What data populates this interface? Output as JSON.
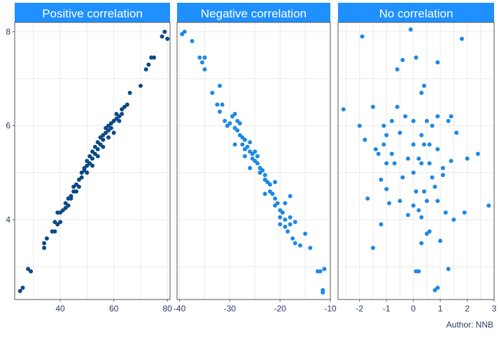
{
  "caption": "Author: NNB",
  "colors": {
    "header": "#1e90ff",
    "header_text": "#ffffff",
    "grid": "#e9e9e9",
    "border": "#555555",
    "tick_text": "#2b3a67",
    "dark_point": "#0c4a86",
    "light_point": "#1e88e5"
  },
  "y_ticks": [
    "4",
    "6",
    "8"
  ],
  "chart_data": [
    {
      "type": "scatter",
      "title": "Positive correlation",
      "xlim": [
        23,
        81
      ],
      "ylim": [
        2.3,
        8.2
      ],
      "x_ticks": [
        40,
        60,
        80
      ],
      "y_ticks": [
        4,
        6,
        8
      ],
      "grid": true,
      "color": "#0c4a86",
      "points": [
        [
          25,
          2.48
        ],
        [
          26,
          2.55
        ],
        [
          28,
          2.95
        ],
        [
          29,
          2.9
        ],
        [
          34,
          3.4
        ],
        [
          34,
          3.5
        ],
        [
          35,
          3.6
        ],
        [
          37,
          3.75
        ],
        [
          38,
          3.75
        ],
        [
          38,
          3.95
        ],
        [
          39,
          4.15
        ],
        [
          39,
          3.9
        ],
        [
          40,
          3.95
        ],
        [
          40,
          4.15
        ],
        [
          41,
          4.2
        ],
        [
          42,
          4.25
        ],
        [
          42,
          4.35
        ],
        [
          43,
          4.45
        ],
        [
          43,
          4.3
        ],
        [
          44,
          4.5
        ],
        [
          45,
          4.6
        ],
        [
          45,
          4.7
        ],
        [
          46,
          4.75
        ],
        [
          47,
          4.7
        ],
        [
          47,
          4.85
        ],
        [
          48,
          4.9
        ],
        [
          48,
          5.0
        ],
        [
          49,
          5.05
        ],
        [
          49,
          5.1
        ],
        [
          50,
          5.15
        ],
        [
          50,
          5.25
        ],
        [
          51,
          5.2
        ],
        [
          51,
          5.35
        ],
        [
          52,
          5.3
        ],
        [
          52,
          5.45
        ],
        [
          53,
          5.4
        ],
        [
          53,
          5.55
        ],
        [
          54,
          5.5
        ],
        [
          54,
          5.65
        ],
        [
          55,
          5.6
        ],
        [
          55,
          5.75
        ],
        [
          56,
          5.8
        ],
        [
          56,
          5.7
        ],
        [
          57,
          5.85
        ],
        [
          57,
          5.95
        ],
        [
          58,
          5.9
        ],
        [
          58,
          6.0
        ],
        [
          59,
          6.05
        ],
        [
          59,
          5.95
        ],
        [
          60,
          6.1
        ],
        [
          60,
          5.85
        ],
        [
          61,
          6.15
        ],
        [
          61,
          6.25
        ],
        [
          62,
          6.2
        ],
        [
          62,
          6.1
        ],
        [
          63,
          6.35
        ],
        [
          63,
          6.25
        ],
        [
          64,
          6.4
        ],
        [
          65,
          6.45
        ],
        [
          66,
          6.7
        ],
        [
          70,
          6.85
        ],
        [
          72,
          7.2
        ],
        [
          73,
          7.3
        ],
        [
          74,
          7.45
        ],
        [
          75,
          7.45
        ],
        [
          78,
          7.9
        ],
        [
          79,
          8.0
        ],
        [
          80,
          7.85
        ],
        [
          56,
          5.55
        ],
        [
          54,
          5.35
        ],
        [
          50,
          5.0
        ],
        [
          46,
          4.6
        ],
        [
          44,
          4.45
        ],
        [
          52,
          5.15
        ],
        [
          58,
          5.75
        ]
      ]
    },
    {
      "type": "scatter",
      "title": "Negative correlation",
      "xlim": [
        -40.5,
        -10
      ],
      "ylim": [
        2.3,
        8.2
      ],
      "x_ticks": [
        -40,
        -30,
        -20,
        -10
      ],
      "y_ticks": [
        4,
        6,
        8
      ],
      "grid": true,
      "color": "#1e88e5",
      "points": [
        [
          -39.5,
          7.95
        ],
        [
          -39,
          8.0
        ],
        [
          -37.5,
          7.8
        ],
        [
          -36,
          7.45
        ],
        [
          -35.5,
          7.35
        ],
        [
          -35,
          7.45
        ],
        [
          -35,
          7.2
        ],
        [
          -33.5,
          6.7
        ],
        [
          -32.5,
          6.45
        ],
        [
          -32,
          6.85
        ],
        [
          -32,
          6.3
        ],
        [
          -31.5,
          6.45
        ],
        [
          -31,
          6.1
        ],
        [
          -30.5,
          6.0
        ],
        [
          -30,
          6.05
        ],
        [
          -29.5,
          6.2
        ],
        [
          -29,
          6.25
        ],
        [
          -29,
          5.95
        ],
        [
          -28.5,
          5.9
        ],
        [
          -28.5,
          6.1
        ],
        [
          -28,
          5.8
        ],
        [
          -28,
          6.05
        ],
        [
          -27.5,
          5.75
        ],
        [
          -27.5,
          5.6
        ],
        [
          -27,
          5.7
        ],
        [
          -27,
          5.5
        ],
        [
          -26.5,
          5.55
        ],
        [
          -26,
          5.45
        ],
        [
          -26,
          5.65
        ],
        [
          -25.5,
          5.4
        ],
        [
          -25.5,
          5.3
        ],
        [
          -25,
          5.25
        ],
        [
          -25,
          5.45
        ],
        [
          -24.5,
          5.2
        ],
        [
          -24.5,
          5.35
        ],
        [
          -24,
          5.1
        ],
        [
          -24,
          5.0
        ],
        [
          -23.5,
          5.05
        ],
        [
          -23,
          4.95
        ],
        [
          -23,
          4.85
        ],
        [
          -22.5,
          4.8
        ],
        [
          -22,
          4.75
        ],
        [
          -22,
          4.6
        ],
        [
          -21.5,
          4.55
        ],
        [
          -21,
          4.45
        ],
        [
          -21,
          4.3
        ],
        [
          -20.5,
          4.35
        ],
        [
          -20,
          4.2
        ],
        [
          -20,
          4.05
        ],
        [
          -19.5,
          4.15
        ],
        [
          -19,
          4.0
        ],
        [
          -19,
          3.85
        ],
        [
          -18.5,
          3.75
        ],
        [
          -18,
          3.9
        ],
        [
          -18,
          4.05
        ],
        [
          -17.5,
          3.6
        ],
        [
          -17,
          3.5
        ],
        [
          -16,
          3.45
        ],
        [
          -15,
          3.7
        ],
        [
          -14,
          3.4
        ],
        [
          -12.5,
          2.9
        ],
        [
          -12,
          2.9
        ],
        [
          -11.5,
          2.5
        ],
        [
          -11.5,
          2.45
        ],
        [
          -11.2,
          2.95
        ],
        [
          -26,
          5.1
        ],
        [
          -27,
          5.35
        ],
        [
          -29,
          5.6
        ],
        [
          -23,
          4.55
        ],
        [
          -21,
          4.8
        ],
        [
          -19,
          4.35
        ],
        [
          -20,
          3.9
        ],
        [
          -18,
          4.5
        ],
        [
          -17,
          3.95
        ]
      ]
    },
    {
      "type": "scatter",
      "title": "No correlation",
      "xlim": [
        -2.8,
        3.0
      ],
      "ylim": [
        2.3,
        8.2
      ],
      "x_ticks": [
        -2,
        -1,
        0,
        1,
        2,
        3
      ],
      "y_ticks": [
        4,
        6,
        8
      ],
      "grid": true,
      "color": "#1e88e5",
      "points": [
        [
          -2.6,
          6.35
        ],
        [
          -2.0,
          6.0
        ],
        [
          -1.9,
          7.9
        ],
        [
          -1.8,
          5.7
        ],
        [
          -1.7,
          4.45
        ],
        [
          -1.5,
          6.4
        ],
        [
          -1.5,
          3.4
        ],
        [
          -1.4,
          5.5
        ],
        [
          -1.3,
          5.4
        ],
        [
          -1.2,
          4.85
        ],
        [
          -1.2,
          3.9
        ],
        [
          -1.1,
          6.0
        ],
        [
          -1.1,
          5.6
        ],
        [
          -1.0,
          5.8
        ],
        [
          -1.0,
          5.2
        ],
        [
          -1.0,
          4.65
        ],
        [
          -0.9,
          4.35
        ],
        [
          -0.8,
          5.4
        ],
        [
          -0.7,
          5.2
        ],
        [
          -0.6,
          7.2
        ],
        [
          -0.6,
          6.4
        ],
        [
          -0.5,
          5.85
        ],
        [
          -0.5,
          4.4
        ],
        [
          -0.4,
          7.4
        ],
        [
          -0.3,
          6.2
        ],
        [
          -0.2,
          5.3
        ],
        [
          -0.2,
          4.1
        ],
        [
          -0.1,
          8.05
        ],
        [
          0.0,
          6.1
        ],
        [
          0.0,
          5.6
        ],
        [
          0.0,
          5.0
        ],
        [
          0.1,
          7.45
        ],
        [
          0.1,
          4.6
        ],
        [
          0.1,
          2.9
        ],
        [
          0.2,
          5.3
        ],
        [
          0.2,
          4.2
        ],
        [
          0.2,
          2.9
        ],
        [
          0.3,
          6.7
        ],
        [
          0.3,
          5.8
        ],
        [
          0.3,
          5.2
        ],
        [
          0.3,
          4.05
        ],
        [
          0.3,
          3.5
        ],
        [
          0.4,
          6.85
        ],
        [
          0.4,
          5.6
        ],
        [
          0.4,
          4.6
        ],
        [
          0.5,
          6.1
        ],
        [
          0.5,
          4.4
        ],
        [
          0.5,
          3.7
        ],
        [
          0.6,
          5.2
        ],
        [
          0.6,
          3.75
        ],
        [
          0.7,
          6.0
        ],
        [
          0.7,
          4.9
        ],
        [
          0.8,
          4.7
        ],
        [
          0.8,
          2.5
        ],
        [
          0.9,
          7.35
        ],
        [
          0.9,
          6.2
        ],
        [
          0.9,
          5.5
        ],
        [
          0.9,
          4.4
        ],
        [
          0.9,
          2.55
        ],
        [
          1.0,
          3.55
        ],
        [
          1.1,
          4.95
        ],
        [
          1.2,
          4.15
        ],
        [
          1.3,
          6.1
        ],
        [
          1.3,
          2.95
        ],
        [
          1.4,
          6.2
        ],
        [
          1.4,
          5.25
        ],
        [
          1.5,
          4.0
        ],
        [
          1.6,
          5.85
        ],
        [
          1.8,
          7.85
        ],
        [
          1.9,
          4.15
        ],
        [
          2.0,
          5.3
        ],
        [
          2.4,
          5.4
        ],
        [
          2.8,
          4.3
        ],
        [
          -0.4,
          4.9
        ],
        [
          0.6,
          5.6
        ],
        [
          1.1,
          5.1
        ],
        [
          -0.8,
          6.1
        ],
        [
          0.0,
          4.3
        ]
      ]
    }
  ]
}
